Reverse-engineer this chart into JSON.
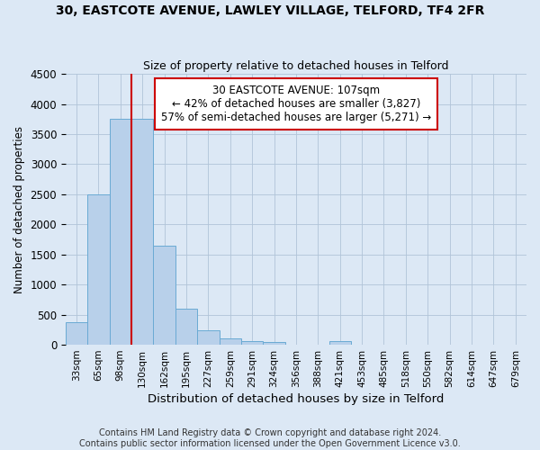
{
  "title": "30, EASTCOTE AVENUE, LAWLEY VILLAGE, TELFORD, TF4 2FR",
  "subtitle": "Size of property relative to detached houses in Telford",
  "xlabel": "Distribution of detached houses by size in Telford",
  "ylabel": "Number of detached properties",
  "categories": [
    "33sqm",
    "65sqm",
    "98sqm",
    "130sqm",
    "162sqm",
    "195sqm",
    "227sqm",
    "259sqm",
    "291sqm",
    "324sqm",
    "356sqm",
    "388sqm",
    "421sqm",
    "453sqm",
    "485sqm",
    "518sqm",
    "550sqm",
    "582sqm",
    "614sqm",
    "647sqm",
    "679sqm"
  ],
  "bar_values": [
    370,
    2500,
    3750,
    3750,
    1640,
    600,
    240,
    105,
    60,
    40,
    0,
    0,
    60,
    0,
    0,
    0,
    0,
    0,
    0,
    0,
    0
  ],
  "bar_color": "#b8d0ea",
  "bar_edge_color": "#6aaad4",
  "property_line_x": 2.5,
  "annotation_text": "30 EASTCOTE AVENUE: 107sqm\n← 42% of detached houses are smaller (3,827)\n57% of semi-detached houses are larger (5,271) →",
  "annotation_box_color": "#ffffff",
  "annotation_box_edge_color": "#cc0000",
  "line_color": "#cc0000",
  "footer_text": "Contains HM Land Registry data © Crown copyright and database right 2024.\nContains public sector information licensed under the Open Government Licence v3.0.",
  "ylim": [
    0,
    4500
  ],
  "background_color": "#dce8f5",
  "plot_bg_color": "#dce8f5"
}
